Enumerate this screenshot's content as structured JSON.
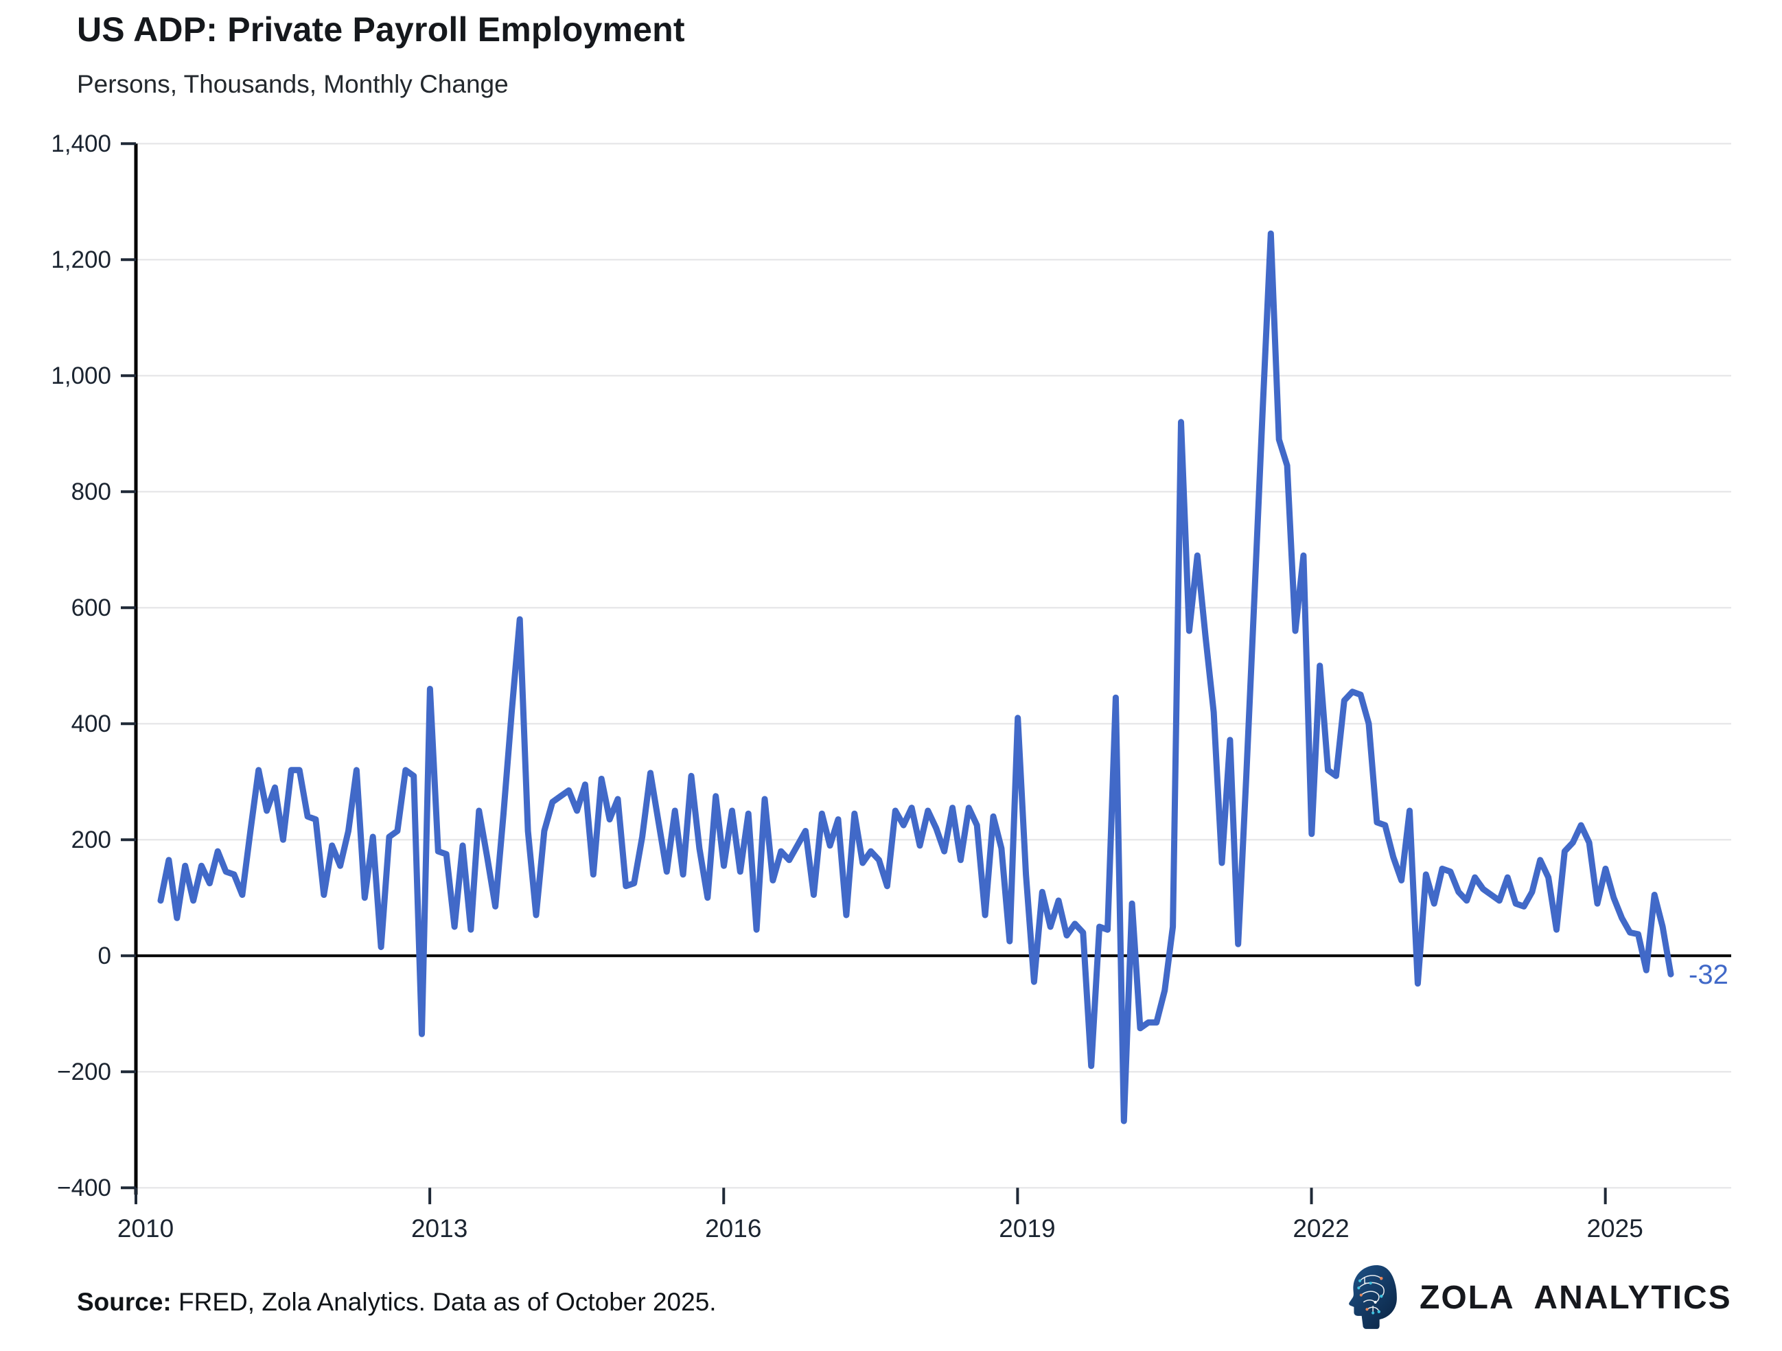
{
  "header": {
    "title": "US ADP: Private Payroll Employment",
    "subtitle": "Persons, Thousands, Monthly Change"
  },
  "chart_data": {
    "type": "line",
    "title": "US ADP: Private Payroll Employment",
    "ylabel": "Persons, Thousands, Monthly Change",
    "xlabel": "",
    "frequency": "monthly",
    "start": "2010-04",
    "end": "2025-09",
    "ylim": [
      -400,
      1400
    ],
    "y_ticks": [
      -400,
      -200,
      0,
      200,
      400,
      600,
      800,
      1000,
      1200,
      1400
    ],
    "x_tick_years": [
      2010,
      2013,
      2016,
      2019,
      2022,
      2025
    ],
    "grid": "horizontal",
    "zero_line": true,
    "legend_position": "none",
    "end_label": "-32",
    "end_value": -32,
    "colors": {
      "line": "#4169c8",
      "grid": "#e8e8ea",
      "axis": "#000000",
      "tick": "#1f2937",
      "tick_label": "#1b2430",
      "end_label": "#4169c8"
    },
    "series": [
      {
        "name": "ADP private payroll employment, monthly change (thousands)",
        "color": "#4169c8",
        "values_by_year": {
          "2010": [
            95,
            165,
            65,
            155,
            95,
            155,
            125,
            180,
            145
          ],
          "2011": [
            140,
            105,
            215,
            320,
            250,
            290,
            200,
            320,
            320,
            240,
            235,
            105
          ],
          "2012": [
            190,
            155,
            215,
            320,
            100,
            205,
            15,
            205,
            215,
            320,
            310,
            -135
          ],
          "2013": [
            460,
            180,
            175,
            50,
            190,
            45,
            250,
            170,
            85,
            245,
            420,
            580
          ],
          "2014": [
            215,
            70,
            215,
            265,
            275,
            285,
            250,
            295,
            140,
            305,
            235,
            270
          ],
          "2015": [
            120,
            125,
            205,
            315,
            230,
            145,
            250,
            140,
            310,
            185,
            100,
            275
          ],
          "2016": [
            155,
            250,
            145,
            245,
            45,
            270,
            130,
            180,
            165,
            190,
            215,
            105
          ],
          "2017": [
            245,
            190,
            235,
            70,
            245,
            160,
            180,
            165,
            120,
            250,
            225,
            255
          ],
          "2018": [
            190,
            250,
            220,
            180,
            255,
            165,
            255,
            225,
            70,
            240,
            185,
            25
          ],
          "2019": [
            410,
            140,
            -45,
            110,
            50,
            95,
            35,
            55,
            40,
            -190,
            50,
            45
          ],
          "2020": [
            445,
            -285,
            90,
            -125,
            -115,
            -115,
            -60,
            50,
            920,
            560,
            690,
            550
          ],
          "2021": [
            420,
            160,
            372,
            20,
            310,
            620,
            940,
            1245,
            890,
            845,
            560,
            690
          ],
          "2022": [
            210,
            500,
            320,
            310,
            440,
            455,
            450,
            400,
            230,
            225,
            170,
            130
          ],
          "2023": [
            250,
            -48,
            140,
            90,
            150,
            145,
            110,
            95,
            135,
            115,
            105,
            95
          ],
          "2024": [
            135,
            90,
            85,
            110,
            165,
            135,
            45,
            180,
            195,
            225,
            195,
            90
          ],
          "2025": [
            150,
            100,
            65,
            40,
            37,
            -25,
            105,
            50,
            -32
          ]
        }
      }
    ]
  },
  "footer": {
    "source_label": "Source:",
    "source_text": " FRED, Zola Analytics. Data as of October 2025."
  },
  "logo": {
    "text": "ZOLA ANALYTICS",
    "head_color_top": "#1e5288",
    "head_color_bottom": "#0b2544",
    "accent_cyan": "#3fc2e0",
    "accent_orange": "#e8875a"
  }
}
